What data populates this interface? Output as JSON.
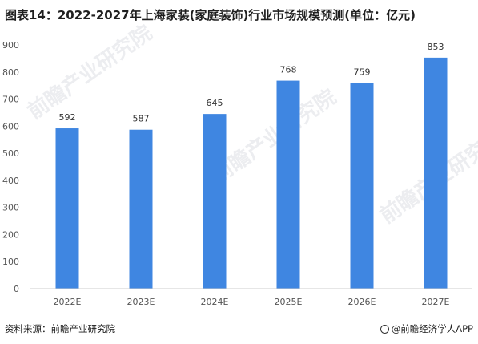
{
  "title": "图表14：2022-2027年上海家装(家庭装饰)行业市场规模预测(单位：亿元)",
  "source": "资料来源：前瞻产业研究院",
  "brand": "@前瞻经济学人APP",
  "brand_icon": "brand-logo-icon",
  "watermark": "前瞻产业研究院",
  "colors": {
    "bar": "#3f86e1",
    "axis": "#cccccc"
  },
  "chart_data": {
    "type": "bar",
    "title": "图表14：2022-2027年上海家装(家庭装饰)行业市场规模预测(单位：亿元)",
    "categories": [
      "2022E",
      "2023E",
      "2024E",
      "2025E",
      "2026E",
      "2027E"
    ],
    "values": [
      592,
      587,
      645,
      768,
      759,
      853
    ],
    "ylim": [
      0,
      900
    ],
    "yticks": [
      0,
      100,
      200,
      300,
      400,
      500,
      600,
      700,
      800,
      900
    ],
    "grid": false,
    "xlabel": "",
    "ylabel": ""
  }
}
